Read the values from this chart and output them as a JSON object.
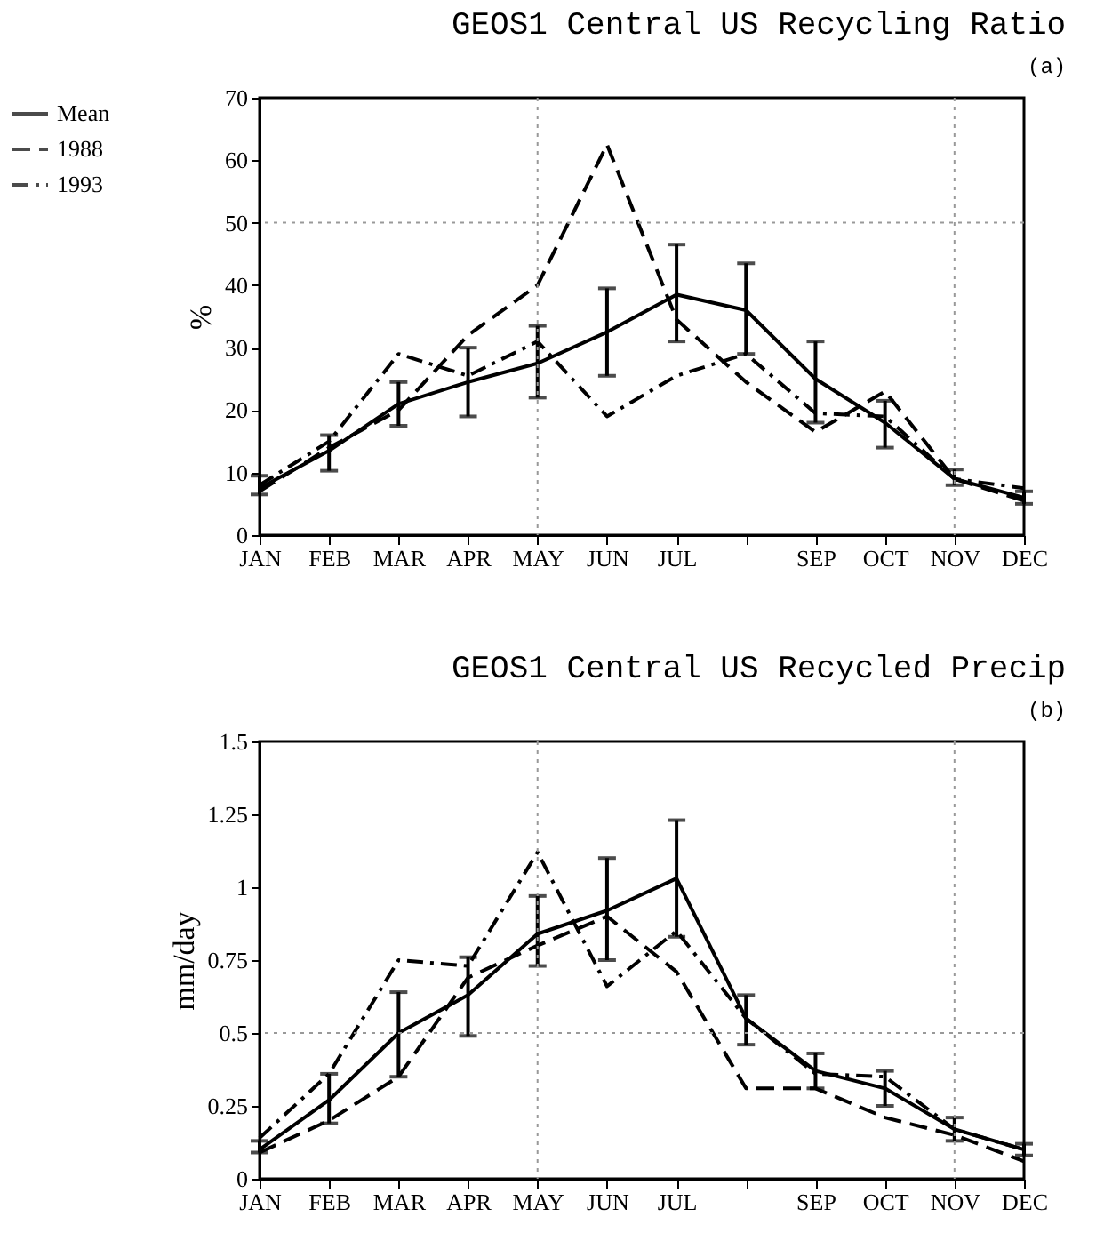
{
  "chart_data": [
    {
      "type": "line",
      "title": "GEOS1 Central US Recycling Ratio",
      "annotations": [
        "(a)"
      ],
      "ylabel": "%",
      "categories": [
        "JAN",
        "FEB",
        "MAR",
        "APR",
        "MAY",
        "JUN",
        "JUL",
        null,
        "SEP",
        "OCT",
        "NOV",
        "DEC"
      ],
      "ylim": [
        0,
        70
      ],
      "yticks": [
        0,
        10,
        20,
        30,
        40,
        50,
        60,
        70
      ],
      "legend": "top left",
      "ref_lines": [
        {
          "axis": "x",
          "value": "MAY",
          "line_style": "dotted",
          "color": "#999999"
        },
        {
          "axis": "x",
          "value": "NOV",
          "line_style": "dotted",
          "color": "#999999"
        },
        {
          "axis": "y",
          "value": 50,
          "line_style": "dotted",
          "color": "#999999"
        }
      ],
      "series": [
        {
          "name": "Mean",
          "color": "#000000",
          "line_style": "solid",
          "values": [
            7.5,
            13.5,
            21,
            24.5,
            27.5,
            32.5,
            38.5,
            36,
            25,
            18,
            9,
            6
          ],
          "errors": [
            [
              6.5,
              9.5
            ],
            [
              10.3,
              16
            ],
            [
              17.5,
              24.5
            ],
            [
              19,
              30
            ],
            [
              22,
              33.5
            ],
            [
              25.5,
              39.5
            ],
            [
              31,
              46.5
            ],
            [
              29,
              43.5
            ],
            [
              18,
              31
            ],
            [
              14,
              21.5
            ],
            [
              8,
              10.5
            ],
            [
              5,
              7
            ]
          ]
        },
        {
          "name": "1988",
          "color": "#000000",
          "line_style": "dashed",
          "values": [
            7,
            14,
            20,
            32,
            40,
            62.5,
            34.5,
            24.5,
            16.5,
            23,
            9,
            5.5
          ]
        },
        {
          "name": "1993",
          "color": "#000000",
          "line_style": "dashdot",
          "values": [
            8,
            15,
            29,
            25.5,
            31,
            19,
            25.5,
            29,
            19.5,
            19,
            9,
            7.5
          ]
        }
      ]
    },
    {
      "type": "line",
      "title": "GEOS1 Central US Recycled Precip",
      "annotations": [
        "(b)"
      ],
      "ylabel": "mm/day",
      "categories": [
        "JAN",
        "FEB",
        "MAR",
        "APR",
        "MAY",
        "JUN",
        "JUL",
        null,
        "SEP",
        "OCT",
        "NOV",
        "DEC"
      ],
      "ylim": [
        0,
        1.5
      ],
      "yticks": [
        0,
        0.25,
        0.5,
        0.75,
        1,
        1.25,
        1.5
      ],
      "ref_lines": [
        {
          "axis": "x",
          "value": "MAY",
          "line_style": "dotted",
          "color": "#999999"
        },
        {
          "axis": "x",
          "value": "NOV",
          "line_style": "dotted",
          "color": "#999999"
        },
        {
          "axis": "y",
          "value": 0.5,
          "line_style": "dotted",
          "color": "#999999"
        }
      ],
      "series": [
        {
          "color": "#000000",
          "line_style": "solid",
          "values": [
            0.1,
            0.27,
            0.5,
            0.63,
            0.84,
            0.92,
            1.03,
            0.55,
            0.37,
            0.31,
            0.17,
            0.1
          ],
          "errors": [
            [
              0.09,
              0.13
            ],
            [
              0.19,
              0.36
            ],
            [
              0.35,
              0.64
            ],
            [
              0.49,
              0.76
            ],
            [
              0.73,
              0.97
            ],
            [
              0.75,
              1.1
            ],
            [
              0.83,
              1.23
            ],
            [
              0.46,
              0.63
            ],
            [
              0.31,
              0.43
            ],
            [
              0.25,
              0.37
            ],
            [
              0.13,
              0.21
            ],
            [
              0.08,
              0.12
            ]
          ]
        },
        {
          "color": "#000000",
          "line_style": "dashed",
          "values": [
            0.09,
            0.2,
            0.35,
            0.69,
            0.8,
            0.9,
            0.71,
            0.31,
            0.31,
            0.21,
            0.15,
            0.06
          ]
        },
        {
          "color": "#000000",
          "line_style": "dashdot",
          "values": [
            0.14,
            0.36,
            0.75,
            0.73,
            1.12,
            0.66,
            0.85,
            0.55,
            0.36,
            0.35,
            0.17,
            0.1
          ]
        }
      ]
    }
  ]
}
